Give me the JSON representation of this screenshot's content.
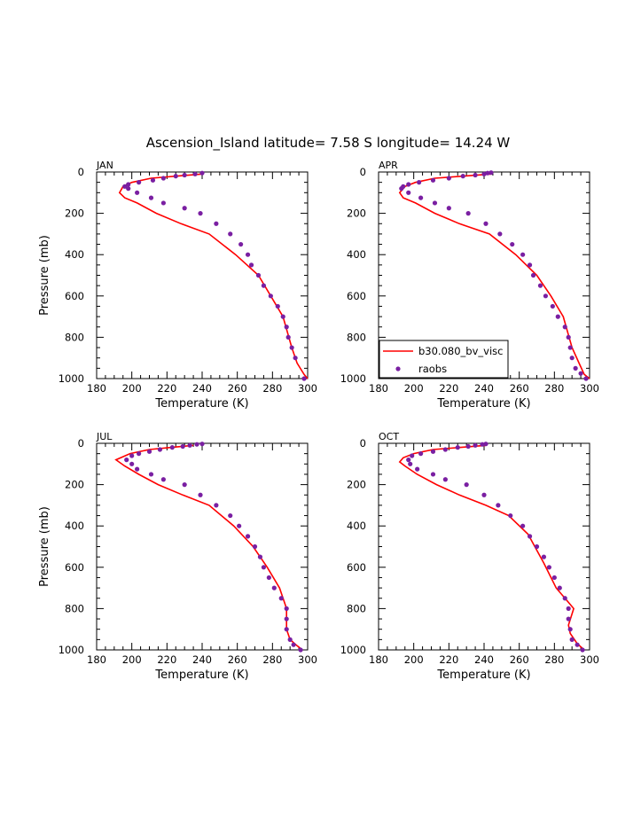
{
  "figure": {
    "title": "Ascension_Island  latitude= 7.58 S longitude= 14.24 W"
  },
  "chart_data": [
    {
      "type": "line",
      "panel": "JAN",
      "xlabel": "Temperature (K)",
      "ylabel": "Pressure (mb)",
      "xlim": [
        180,
        300
      ],
      "ylim": [
        1000,
        0
      ],
      "xticks": [
        180,
        200,
        220,
        240,
        260,
        280,
        300
      ],
      "yticks": [
        0,
        200,
        400,
        600,
        800,
        1000
      ],
      "series": [
        {
          "style": "line",
          "color": "#ff0000",
          "x": [
            240,
            225,
            211,
            200,
            195,
            193,
            196,
            203,
            214,
            228,
            244,
            259,
            272,
            279,
            286,
            291,
            294,
            298,
            300
          ],
          "y": [
            10,
            20,
            30,
            50,
            70,
            100,
            125,
            150,
            200,
            250,
            300,
            400,
            500,
            600,
            700,
            850,
            925,
            980,
            1000
          ]
        },
        {
          "style": "scatter",
          "color": "#7a1fa2",
          "x": [
            240,
            236,
            230,
            225,
            218,
            212,
            204,
            198,
            196,
            198,
            203,
            211,
            218,
            230,
            239,
            248,
            256,
            262,
            266,
            268,
            272,
            275,
            279,
            283,
            286,
            288,
            289,
            291,
            293,
            298
          ],
          "y": [
            5,
            10,
            15,
            20,
            30,
            40,
            50,
            60,
            70,
            80,
            100,
            125,
            150,
            175,
            200,
            250,
            300,
            350,
            400,
            450,
            500,
            550,
            600,
            650,
            700,
            750,
            800,
            850,
            900,
            1000
          ]
        }
      ]
    },
    {
      "type": "line",
      "panel": "APR",
      "xlabel": "Temperature (K)",
      "ylabel": "",
      "xlim": [
        180,
        300
      ],
      "ylim": [
        1000,
        0
      ],
      "xticks": [
        180,
        200,
        220,
        240,
        260,
        280,
        300
      ],
      "yticks": [
        0,
        200,
        400,
        600,
        800,
        1000
      ],
      "legend": {
        "position": "bottom-left",
        "entries": [
          {
            "label": "b30.080_bv_visc",
            "style": "line",
            "color": "#ff0000"
          },
          {
            "label": "raobs",
            "style": "marker",
            "color": "#7a1fa2"
          }
        ]
      },
      "series": [
        {
          "style": "line",
          "color": "#ff0000",
          "x": [
            244,
            228,
            212,
            201,
            195,
            192,
            194,
            201,
            212,
            226,
            243,
            258,
            270,
            278,
            285,
            290,
            294,
            297,
            300
          ],
          "y": [
            10,
            20,
            30,
            50,
            70,
            100,
            125,
            150,
            200,
            250,
            300,
            400,
            500,
            600,
            700,
            850,
            925,
            980,
            1000
          ]
        },
        {
          "style": "scatter",
          "color": "#7a1fa2",
          "x": [
            244,
            242,
            240,
            235,
            228,
            220,
            211,
            203,
            197,
            194,
            193,
            197,
            204,
            212,
            220,
            231,
            241,
            249,
            256,
            262,
            266,
            268,
            272,
            275,
            279,
            282,
            286,
            288,
            289,
            290,
            292,
            295,
            298
          ],
          "y": [
            3,
            5,
            10,
            15,
            20,
            30,
            40,
            50,
            60,
            70,
            80,
            100,
            125,
            150,
            175,
            200,
            250,
            300,
            350,
            400,
            450,
            500,
            550,
            600,
            650,
            700,
            750,
            800,
            850,
            900,
            950,
            975,
            1000
          ]
        }
      ]
    },
    {
      "type": "line",
      "panel": "JUL",
      "xlabel": "Temperature (K)",
      "ylabel": "Pressure (mb)",
      "xlim": [
        180,
        300
      ],
      "ylim": [
        1000,
        0
      ],
      "xticks": [
        180,
        200,
        220,
        240,
        260,
        280,
        300
      ],
      "yticks": [
        0,
        200,
        400,
        600,
        800,
        1000
      ],
      "series": [
        {
          "style": "line",
          "color": "#ff0000",
          "x": [
            235,
            222,
            210,
            199,
            191,
            196,
            204,
            215,
            229,
            244,
            258,
            269,
            277,
            284,
            288,
            288,
            290,
            294,
            297
          ],
          "y": [
            10,
            20,
            30,
            50,
            80,
            110,
            150,
            200,
            250,
            300,
            400,
            500,
            600,
            700,
            800,
            900,
            950,
            980,
            1000
          ]
        },
        {
          "style": "scatter",
          "color": "#7a1fa2",
          "x": [
            240,
            237,
            233,
            229,
            223,
            216,
            210,
            204,
            200,
            197,
            200,
            203,
            211,
            218,
            230,
            239,
            248,
            256,
            261,
            266,
            270,
            273,
            275,
            278,
            281,
            285,
            288,
            288,
            288,
            290,
            292,
            296
          ],
          "y": [
            3,
            5,
            10,
            15,
            20,
            30,
            40,
            50,
            60,
            80,
            100,
            125,
            150,
            175,
            200,
            250,
            300,
            350,
            400,
            450,
            500,
            550,
            600,
            650,
            700,
            750,
            800,
            850,
            900,
            950,
            975,
            1000
          ]
        }
      ]
    },
    {
      "type": "line",
      "panel": "OCT",
      "xlabel": "Temperature (K)",
      "ylabel": "",
      "xlim": [
        180,
        300
      ],
      "ylim": [
        1000,
        0
      ],
      "xticks": [
        180,
        200,
        220,
        240,
        260,
        280,
        300
      ],
      "yticks": [
        0,
        200,
        400,
        600,
        800,
        1000
      ],
      "series": [
        {
          "style": "line",
          "color": "#ff0000",
          "x": [
            241,
            226,
            211,
            200,
            194,
            192,
            195,
            202,
            213,
            226,
            241,
            254,
            265,
            274,
            281,
            288,
            291,
            288,
            289,
            293,
            297
          ],
          "y": [
            10,
            20,
            30,
            50,
            70,
            90,
            110,
            150,
            200,
            250,
            300,
            350,
            440,
            580,
            700,
            770,
            800,
            880,
            920,
            970,
            1000
          ]
        },
        {
          "style": "scatter",
          "color": "#7a1fa2",
          "x": [
            241,
            239,
            235,
            231,
            225,
            218,
            211,
            204,
            199,
            197,
            198,
            202,
            211,
            218,
            230,
            240,
            248,
            255,
            262,
            266,
            270,
            274,
            277,
            280,
            283,
            286,
            288,
            288,
            289,
            290,
            293,
            296
          ],
          "y": [
            3,
            5,
            10,
            15,
            20,
            30,
            40,
            50,
            60,
            80,
            100,
            125,
            150,
            175,
            200,
            250,
            300,
            350,
            400,
            450,
            500,
            550,
            600,
            650,
            700,
            750,
            800,
            850,
            900,
            950,
            975,
            1000
          ]
        }
      ]
    }
  ]
}
